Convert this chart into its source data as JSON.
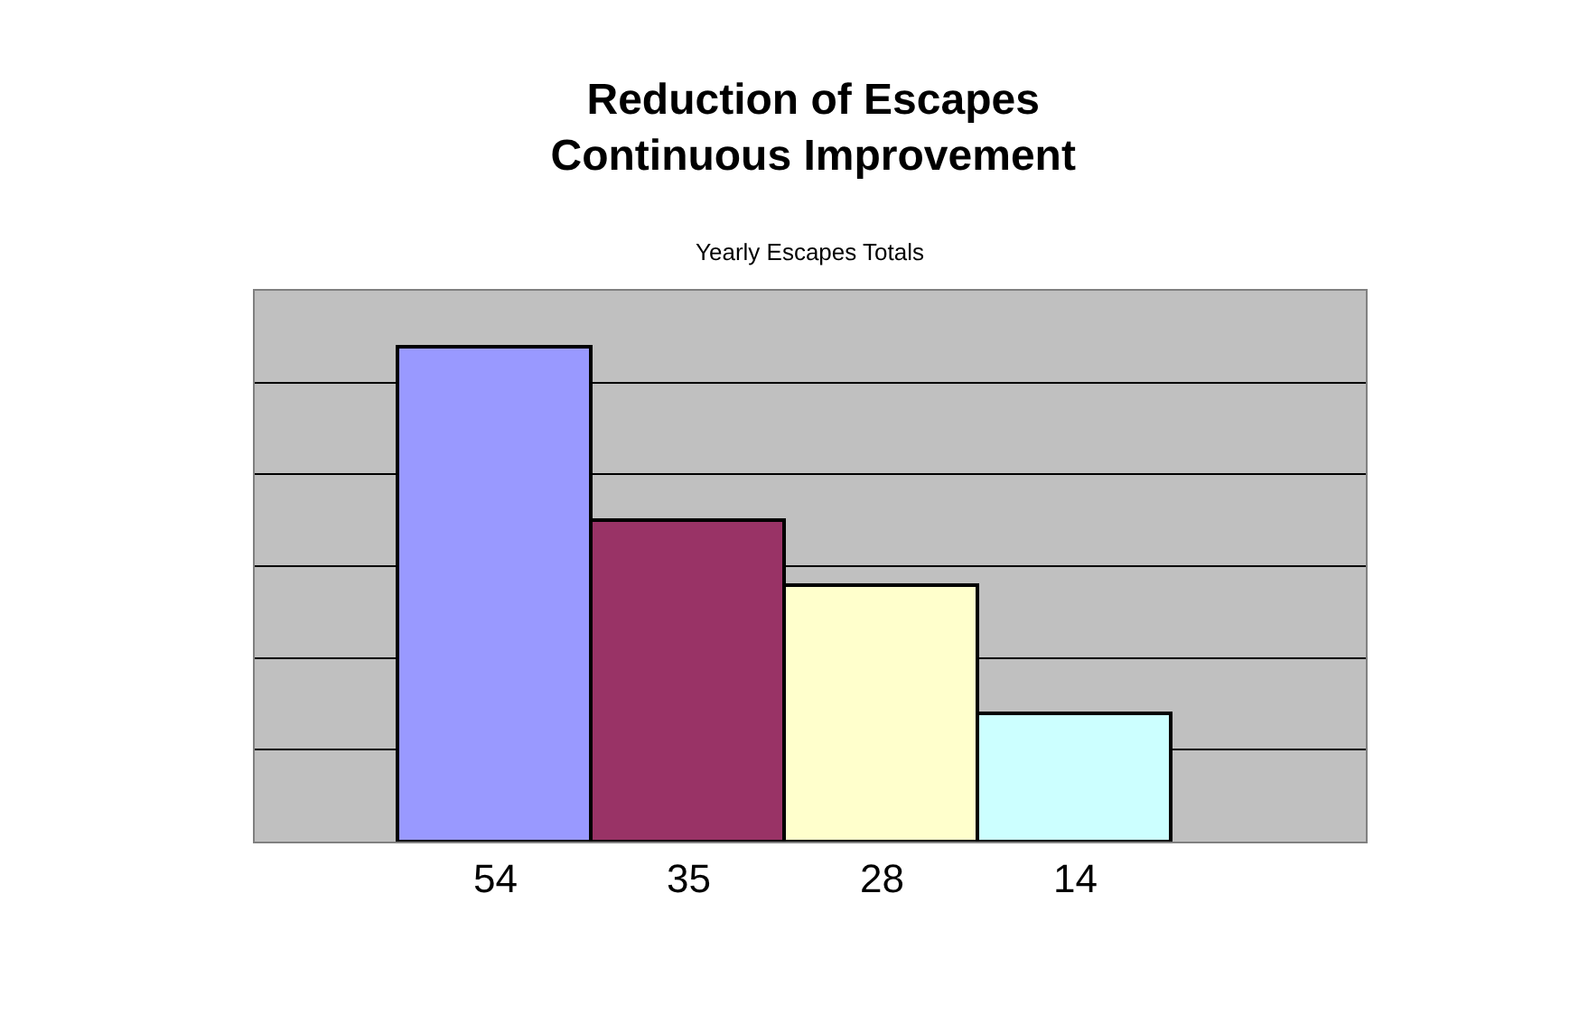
{
  "chart_data": {
    "type": "bar",
    "title": "Reduction of Escapes\nContinuous Improvement",
    "subtitle": "Yearly Escapes Totals",
    "categories": [
      null,
      null,
      null,
      null
    ],
    "values": [
      54,
      35,
      28,
      14
    ],
    "colors": [
      "#9999ff",
      "#993366",
      "#ffffcc",
      "#ccffff"
    ],
    "ylim": [
      0,
      60
    ],
    "yticks": [
      {
        "value": 0,
        "label": null
      },
      {
        "value": 10,
        "label": null
      },
      {
        "value": 20,
        "label": null
      },
      {
        "value": 30,
        "label": null
      },
      {
        "value": 40,
        "label": null
      },
      {
        "value": 50,
        "label": null
      },
      {
        "value": 60,
        "label": null
      }
    ],
    "grid": "y",
    "data_labels": true
  }
}
